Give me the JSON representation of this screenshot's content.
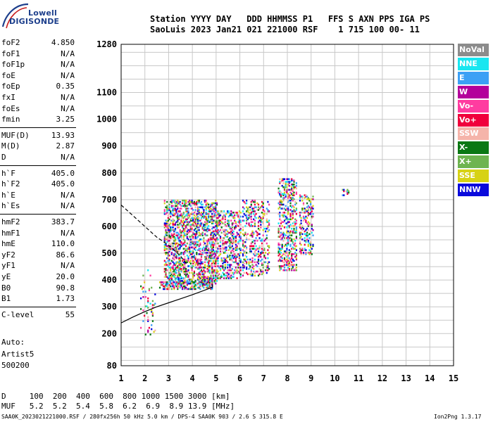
{
  "logo": {
    "line1": "Lowell",
    "line2": "DIGISONDE"
  },
  "header": {
    "labels": "Station YYYY DAY   DDD HHMMSS P1   FFS S AXN PPS IGA PS",
    "values": "SaoLuis 2023 Jan21 021 221000 RSF    1 715 100 00- 11"
  },
  "parameters": [
    {
      "name": "foF2",
      "value": "4.850"
    },
    {
      "name": "foF1",
      "value": "N/A"
    },
    {
      "name": "foF1p",
      "value": "N/A"
    },
    {
      "name": "foE",
      "value": "N/A"
    },
    {
      "name": "foEp",
      "value": "0.35"
    },
    {
      "name": "fxI",
      "value": "N/A"
    },
    {
      "name": "foEs",
      "value": "N/A"
    },
    {
      "name": "fmin",
      "value": "3.25"
    },
    {
      "name": "MUF(D)",
      "value": "13.93"
    },
    {
      "name": "M(D)",
      "value": "2.87"
    },
    {
      "name": "D",
      "value": "N/A"
    },
    {
      "name": "h`F",
      "value": "405.0"
    },
    {
      "name": "h`F2",
      "value": "405.0"
    },
    {
      "name": "h`E",
      "value": "N/A"
    },
    {
      "name": "h`Es",
      "value": "N/A"
    },
    {
      "name": "hmF2",
      "value": "383.7"
    },
    {
      "name": "hmF1",
      "value": "N/A"
    },
    {
      "name": "hmE",
      "value": "110.0"
    },
    {
      "name": "yF2",
      "value": "86.6"
    },
    {
      "name": "yF1",
      "value": "N/A"
    },
    {
      "name": "yE",
      "value": "20.0"
    },
    {
      "name": "B0",
      "value": "90.8"
    },
    {
      "name": "B1",
      "value": "1.73"
    },
    {
      "name": "C-level",
      "value": "55"
    }
  ],
  "scaling": {
    "mode": "Auto:",
    "artist": "Artist5",
    "version": "500200"
  },
  "legend": [
    {
      "label": "NoVal",
      "color": "#8c8c8c"
    },
    {
      "label": "NNE",
      "color": "#19e6f0"
    },
    {
      "label": "E",
      "color": "#3ca0f5"
    },
    {
      "label": "W",
      "color": "#b4009b"
    },
    {
      "label": "Vo-",
      "color": "#ff3ca0"
    },
    {
      "label": "Vo+",
      "color": "#f0003c"
    },
    {
      "label": "SSW",
      "color": "#f5b4aa"
    },
    {
      "label": "X-",
      "color": "#0a7814"
    },
    {
      "label": "X+",
      "color": "#6eb450"
    },
    {
      "label": "SSE",
      "color": "#d7d214"
    },
    {
      "label": "NNW",
      "color": "#0a0adc"
    }
  ],
  "muf_table": {
    "d_row": "D     100  200  400  600  800 1000 1500 3000 [km]",
    "muf_row": "MUF   5.2  5.2  5.4  5.8  6.2  6.9  8.9 13.9 [MHz]"
  },
  "footer": {
    "left": "SAA0K_2023021221000.RSF / 280fx256h 50 kHz 5.0 km / DPS-4 SAA0K 903 / 2.6 S 315.8 E",
    "right": "Ion2Png 1.3.17"
  },
  "chart_data": {
    "type": "scatter",
    "title": "",
    "xlabel": "",
    "ylabel": "",
    "xlim": [
      1,
      15
    ],
    "ylim": [
      80,
      1280
    ],
    "xticks": [
      1,
      2,
      3,
      4,
      5,
      6,
      7,
      8,
      9,
      10,
      11,
      12,
      13,
      14,
      15
    ],
    "yticks": [
      80,
      200,
      300,
      400,
      500,
      600,
      700,
      800,
      900,
      1000,
      1100,
      1280
    ],
    "grid": true,
    "traces": [
      {
        "style": "dashed",
        "x": [
          1.0,
          1.5,
          2.0,
          2.5,
          3.0,
          3.5,
          3.8
        ],
        "y": [
          680,
          640,
          600,
          560,
          530,
          490,
          455
        ]
      },
      {
        "style": "solid",
        "x": [
          1.0,
          1.5,
          2.0,
          2.5,
          3.0,
          3.5,
          4.0,
          4.4,
          4.7,
          4.85,
          4.85
        ],
        "y": [
          240,
          262,
          282,
          300,
          315,
          330,
          345,
          358,
          368,
          375,
          384
        ]
      }
    ],
    "echo_clusters": [
      {
        "x": [
          2.6,
          4.8
        ],
        "y": [
          370,
          395
        ],
        "density": 0.55
      },
      {
        "x": [
          2.8,
          5.0
        ],
        "y": [
          390,
          700
        ],
        "density": 0.45
      },
      {
        "x": [
          5.0,
          6.0
        ],
        "y": [
          410,
          660
        ],
        "density": 0.35
      },
      {
        "x": [
          6.1,
          7.2
        ],
        "y": [
          420,
          700
        ],
        "density": 0.25
      },
      {
        "x": [
          7.6,
          8.4
        ],
        "y": [
          440,
          780
        ],
        "density": 0.35
      },
      {
        "x": [
          8.5,
          9.1
        ],
        "y": [
          500,
          720
        ],
        "density": 0.3
      },
      {
        "x": [
          1.8,
          2.4
        ],
        "y": [
          200,
          440
        ],
        "density": 0.08
      },
      {
        "x": [
          10.3,
          10.6
        ],
        "y": [
          720,
          740
        ],
        "density": 0.4
      }
    ]
  }
}
